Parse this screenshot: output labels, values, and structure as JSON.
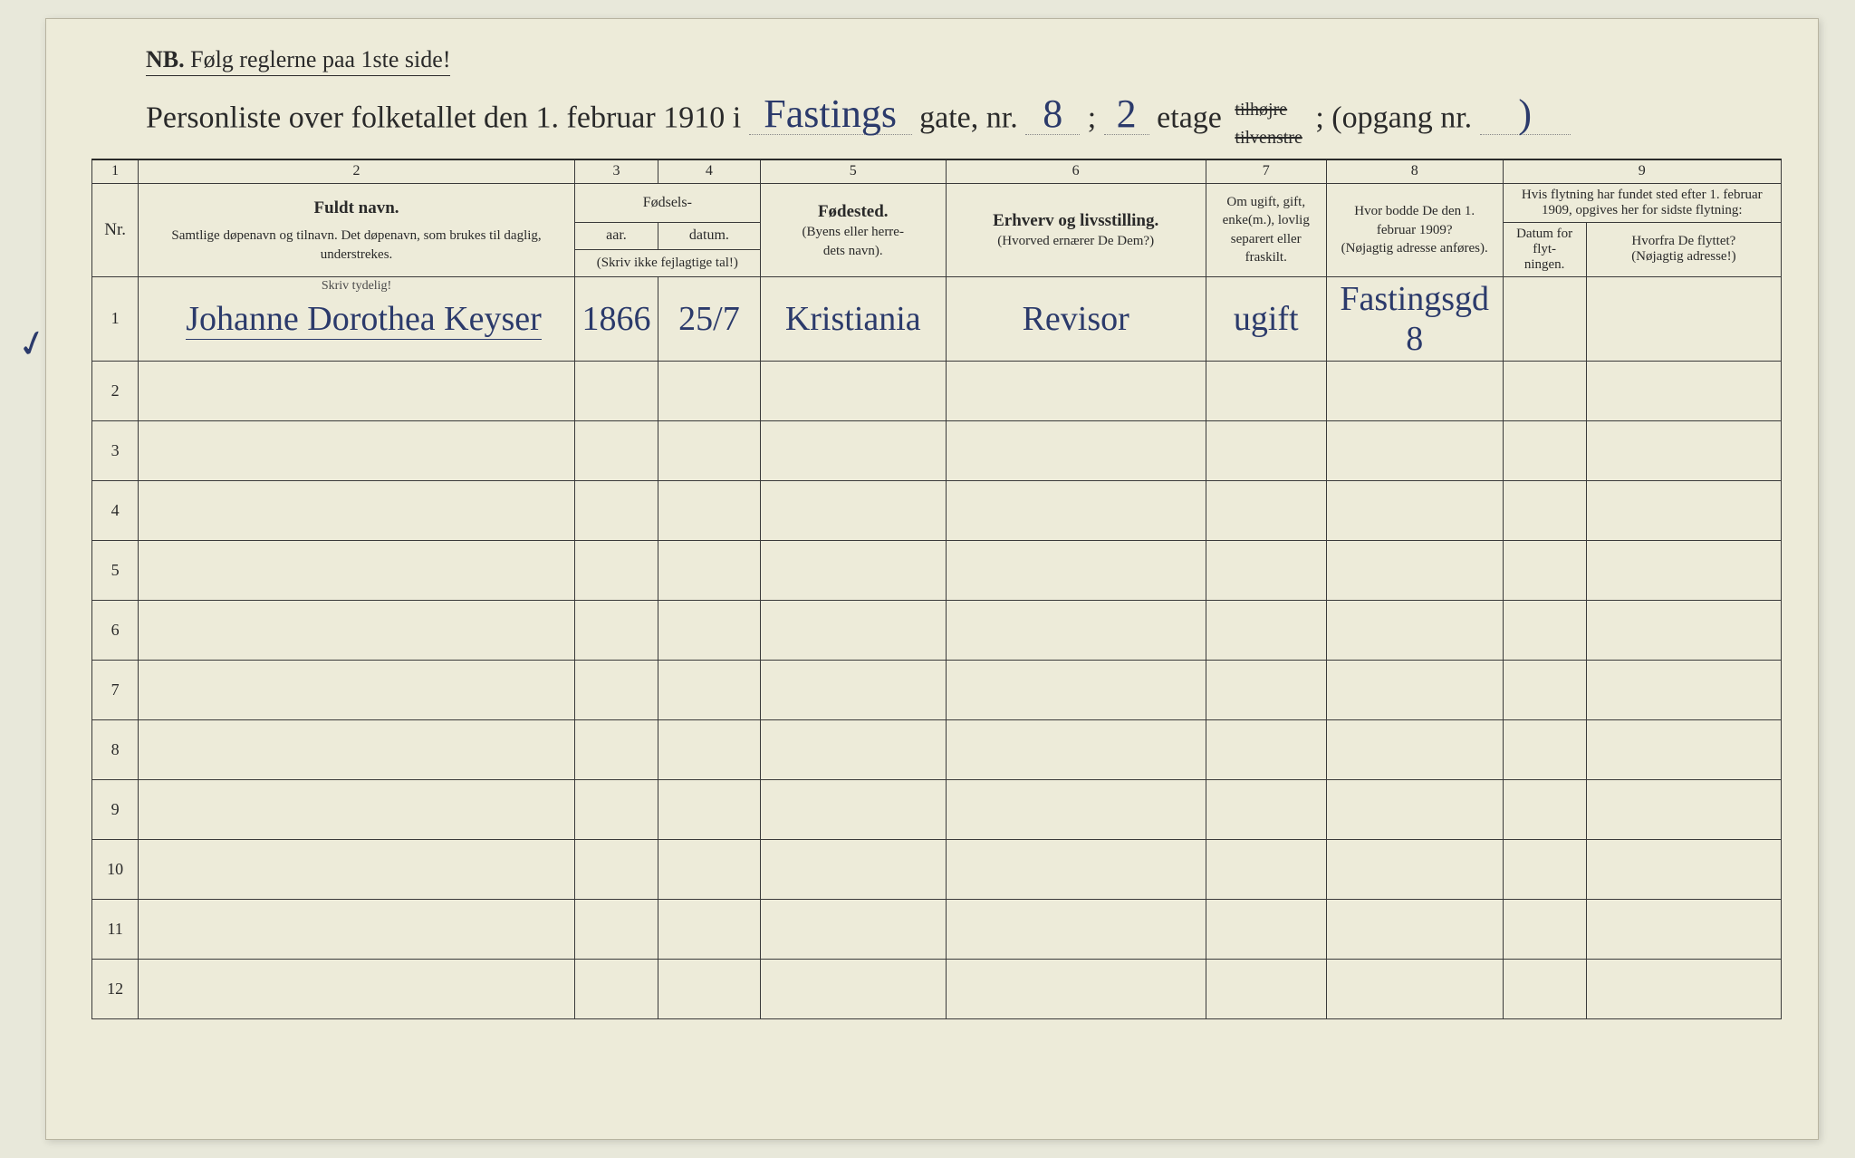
{
  "header": {
    "nb_label": "NB.",
    "nb_text": "Følg reglerne paa 1ste side!",
    "title_prefix": "Personliste over folketallet den 1. februar 1910 i",
    "street_name": "Fastings",
    "gate_label": "gate, nr.",
    "gate_nr": "8",
    "semicolon": ";",
    "etage_nr": "2",
    "etage_label": "etage",
    "side_struck_top": "tilhøjre",
    "side_struck_bot": "tilvenstre",
    "opgang_label": "(opgang nr.",
    "opgang_value": ")",
    "opgang_close": ""
  },
  "colnums": [
    "1",
    "2",
    "3",
    "4",
    "5",
    "6",
    "7",
    "8",
    "9"
  ],
  "columns": {
    "nr": "Nr.",
    "name_title": "Fuldt navn.",
    "name_sub": "Samtlige døpenavn og tilnavn. Det døpenavn, som brukes til daglig, understrekes.",
    "fodsels": "Fødsels-",
    "aar": "aar.",
    "datum": "datum.",
    "fodsels_note": "(Skriv ikke fejlagtige tal!)",
    "fodested_title": "Fødested.",
    "fodested_sub": "(Byens eller herre-\ndets navn).",
    "erhverv_title": "Erhverv og livsstilling.",
    "erhverv_sub": "(Hvorved ernærer De Dem?)",
    "col7": "Om ugift, gift, enke(m.), lovlig separert eller fraskilt.",
    "col8_title": "Hvor bodde De den 1. februar 1909?",
    "col8_sub": "(Nøjagtig adresse anføres).",
    "col9_top": "Hvis flytning har fundet sted efter 1. februar 1909, opgives her for sidste flytning:",
    "col9a": "Datum for flyt-\nningen.",
    "col9b_title": "Hvorfra De flyttet?",
    "col9b_sub": "(Nøjagtig adresse!)",
    "skriv_hint": "Skriv tydelig!"
  },
  "rows": [
    {
      "nr": "1",
      "name": "Johanne Dorothea Keyser",
      "aar": "1866",
      "datum": "25/7",
      "fodested": "Kristiania",
      "erhverv": "Revisor",
      "status": "ugift",
      "addr1909": "Fastingsgd 8",
      "flyt_dat": "",
      "flyt_fra": ""
    },
    {
      "nr": "2",
      "name": "",
      "aar": "",
      "datum": "",
      "fodested": "",
      "erhverv": "",
      "status": "",
      "addr1909": "",
      "flyt_dat": "",
      "flyt_fra": ""
    },
    {
      "nr": "3",
      "name": "",
      "aar": "",
      "datum": "",
      "fodested": "",
      "erhverv": "",
      "status": "",
      "addr1909": "",
      "flyt_dat": "",
      "flyt_fra": ""
    },
    {
      "nr": "4",
      "name": "",
      "aar": "",
      "datum": "",
      "fodested": "",
      "erhverv": "",
      "status": "",
      "addr1909": "",
      "flyt_dat": "",
      "flyt_fra": ""
    },
    {
      "nr": "5",
      "name": "",
      "aar": "",
      "datum": "",
      "fodested": "",
      "erhverv": "",
      "status": "",
      "addr1909": "",
      "flyt_dat": "",
      "flyt_fra": ""
    },
    {
      "nr": "6",
      "name": "",
      "aar": "",
      "datum": "",
      "fodested": "",
      "erhverv": "",
      "status": "",
      "addr1909": "",
      "flyt_dat": "",
      "flyt_fra": ""
    },
    {
      "nr": "7",
      "name": "",
      "aar": "",
      "datum": "",
      "fodested": "",
      "erhverv": "",
      "status": "",
      "addr1909": "",
      "flyt_dat": "",
      "flyt_fra": ""
    },
    {
      "nr": "8",
      "name": "",
      "aar": "",
      "datum": "",
      "fodested": "",
      "erhverv": "",
      "status": "",
      "addr1909": "",
      "flyt_dat": "",
      "flyt_fra": ""
    },
    {
      "nr": "9",
      "name": "",
      "aar": "",
      "datum": "",
      "fodested": "",
      "erhverv": "",
      "status": "",
      "addr1909": "",
      "flyt_dat": "",
      "flyt_fra": ""
    },
    {
      "nr": "10",
      "name": "",
      "aar": "",
      "datum": "",
      "fodested": "",
      "erhverv": "",
      "status": "",
      "addr1909": "",
      "flyt_dat": "",
      "flyt_fra": ""
    },
    {
      "nr": "11",
      "name": "",
      "aar": "",
      "datum": "",
      "fodested": "",
      "erhverv": "",
      "status": "",
      "addr1909": "",
      "flyt_dat": "",
      "flyt_fra": ""
    },
    {
      "nr": "12",
      "name": "",
      "aar": "",
      "datum": "",
      "fodested": "",
      "erhverv": "",
      "status": "",
      "addr1909": "",
      "flyt_dat": "",
      "flyt_fra": ""
    }
  ],
  "style": {
    "paper_bg": "#edebd9",
    "ink": "#2a2a2a",
    "hand_ink": "#2b3a6b",
    "border": "#3a3a3a"
  }
}
